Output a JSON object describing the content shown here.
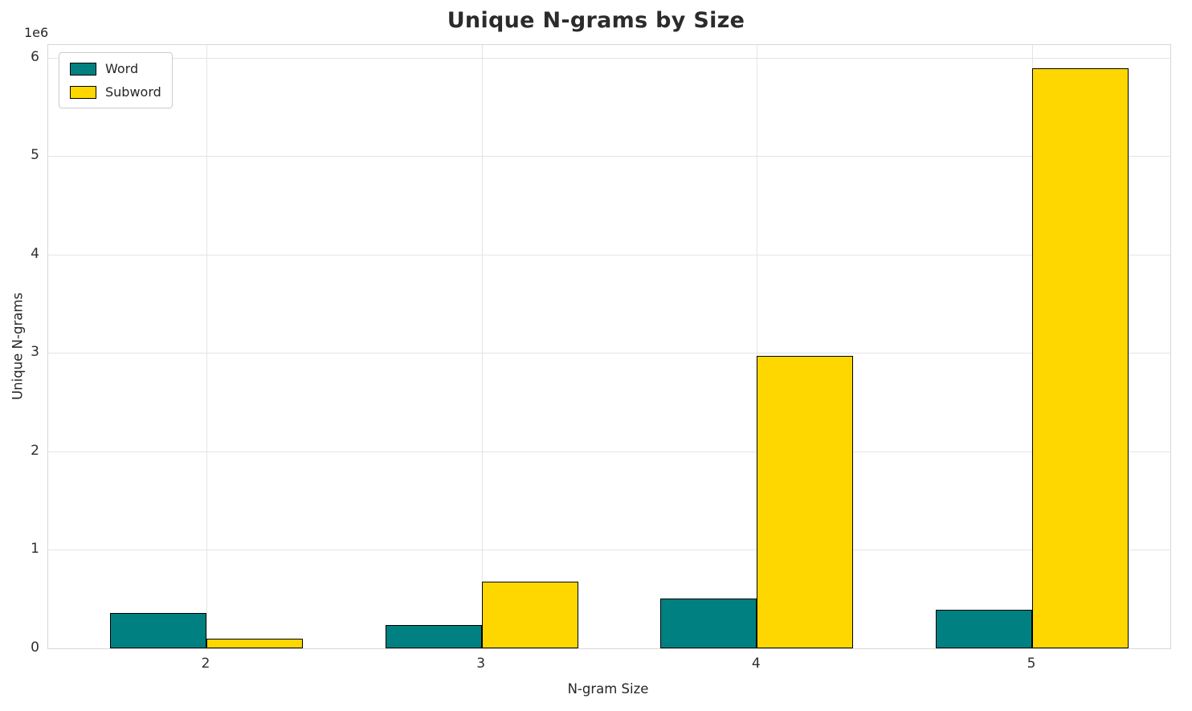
{
  "chart_data": {
    "type": "bar",
    "title": "Unique N-grams by Size",
    "xlabel": "N-gram Size",
    "ylabel": "Unique N-grams",
    "offset_text": "1e6",
    "categories": [
      "2",
      "3",
      "4",
      "5"
    ],
    "series": [
      {
        "name": "Word",
        "color": "#008080",
        "values": [
          360000,
          240000,
          510000,
          395000
        ]
      },
      {
        "name": "Subword",
        "color": "#FFD700",
        "values": [
          95000,
          680000,
          2975000,
          5890000
        ]
      }
    ],
    "ylim": [
      0,
      6130000
    ],
    "yticks": [
      0,
      1000000,
      2000000,
      3000000,
      4000000,
      5000000,
      6000000
    ],
    "ytick_labels": [
      "0",
      "1",
      "2",
      "3",
      "4",
      "5",
      "6"
    ],
    "grid": true,
    "legend_position": "upper left",
    "bar_edge_color": "#000000",
    "background": "#ffffff"
  }
}
